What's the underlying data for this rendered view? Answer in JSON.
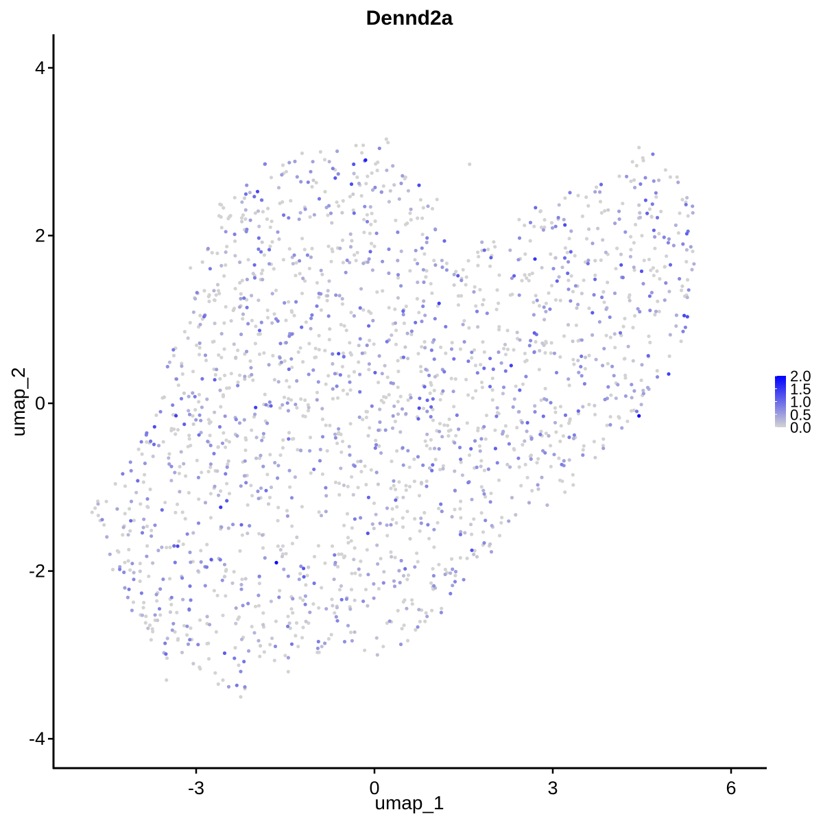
{
  "chart_data": {
    "type": "scatter",
    "title": "Dennd2a",
    "xlabel": "umap_1",
    "ylabel": "umap_2",
    "xlim": [
      -5.4,
      6.6
    ],
    "ylim": [
      -4.35,
      4.4
    ],
    "x_ticks": [
      "-3",
      "0",
      "3",
      "6"
    ],
    "x_tick_values": [
      -3,
      0,
      3,
      6
    ],
    "y_ticks": [
      "-4",
      "-2",
      "0",
      "2",
      "4"
    ],
    "y_tick_values": [
      -4,
      -2,
      0,
      2,
      4
    ],
    "grid": false,
    "point_count": 2000,
    "color_scale": {
      "low_color": "#d3d3d3",
      "high_color": "#0000ff",
      "min": 0,
      "max": 2.0,
      "labels": [
        "2.0",
        "1.5",
        "1.0",
        "0.5",
        "0.0"
      ],
      "values": [
        2.0,
        1.5,
        1.0,
        0.5,
        0.0
      ],
      "legend_position": "right"
    },
    "points": [
      [
        -4.7,
        -1.25,
        0
      ],
      [
        -4.75,
        -1.3,
        0
      ],
      [
        -4.65,
        -1.2,
        0.3
      ],
      [
        -4.55,
        -1.45,
        0
      ],
      [
        -4.45,
        -1.8,
        0.4
      ],
      [
        -4.2,
        -2.2,
        0.5
      ],
      [
        -4.1,
        -1.4,
        1.0
      ],
      [
        -3.7,
        -0.28,
        1.3
      ],
      [
        -3.6,
        -0.1,
        0.7
      ],
      [
        -3.2,
        -0.25,
        1.1
      ],
      [
        -2.7,
        -0.6,
        0.8
      ],
      [
        -2.0,
        -0.05,
        1.4
      ],
      [
        -1.65,
        -1.9,
        1.9
      ],
      [
        -2.15,
        2.6,
        0.6
      ],
      [
        -1.85,
        2.85,
        0
      ],
      [
        -1.3,
        2.7,
        0.5
      ],
      [
        -0.7,
        2.8,
        0.8
      ],
      [
        -0.35,
        2.85,
        1.2
      ],
      [
        -0.15,
        2.9,
        1.7
      ],
      [
        0.2,
        3.15,
        0
      ],
      [
        0.75,
        2.6,
        1.3
      ],
      [
        0.9,
        2.35,
        0.4
      ],
      [
        1.6,
        2.85,
        0
      ],
      [
        0.8,
        1.85,
        0.7
      ],
      [
        2.3,
        0.45,
        1.4
      ],
      [
        2.7,
        1.72,
        1.5
      ],
      [
        3.25,
        1.55,
        1.0
      ],
      [
        4.15,
        1.65,
        1.2
      ],
      [
        4.45,
        -0.15,
        1.9
      ],
      [
        4.95,
        0.35,
        1.4
      ],
      [
        5.35,
        2.35,
        0.5
      ],
      [
        4.45,
        3.05,
        0
      ],
      [
        4.7,
        2.65,
        0.6
      ],
      [
        -3.5,
        -3.3,
        0
      ],
      [
        -2.55,
        -3.3,
        0
      ],
      [
        -2.25,
        -3.5,
        0
      ],
      [
        -1.45,
        -3.2,
        0
      ],
      [
        0.05,
        -3.0,
        0.2
      ],
      [
        0.85,
        -2.6,
        0
      ]
    ]
  }
}
